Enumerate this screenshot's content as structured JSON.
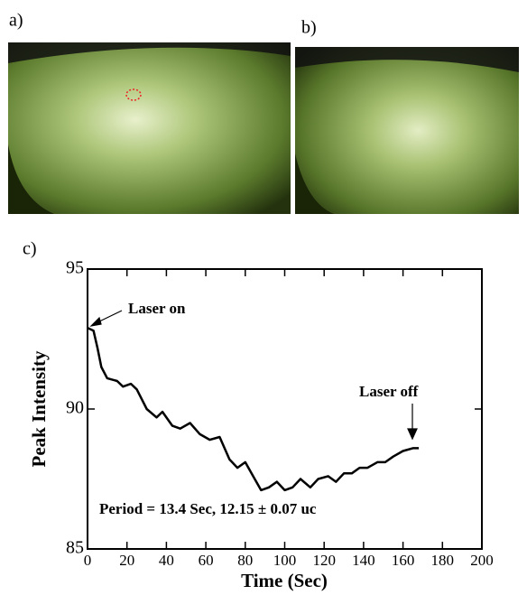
{
  "panel_labels": [
    "a)",
    "b)",
    "c)"
  ],
  "chart_data": {
    "type": "line",
    "x_label": "Time (Sec)",
    "y_label": "Peak Intensity",
    "x": [
      0,
      3,
      5,
      7,
      10,
      15,
      18,
      22,
      25,
      30,
      35,
      38,
      43,
      47,
      52,
      57,
      62,
      67,
      72,
      76,
      80,
      84,
      88,
      92,
      96,
      100,
      104,
      108,
      113,
      117,
      122,
      126,
      130,
      134,
      138,
      142,
      147,
      151,
      155,
      160,
      165,
      168
    ],
    "values": [
      92.9,
      92.8,
      92.2,
      91.5,
      91.1,
      91.0,
      90.8,
      90.9,
      90.7,
      90.0,
      89.7,
      89.9,
      89.4,
      89.3,
      89.5,
      89.1,
      88.9,
      89.0,
      88.2,
      87.9,
      88.1,
      87.6,
      87.1,
      87.2,
      87.4,
      87.1,
      87.2,
      87.5,
      87.2,
      87.5,
      87.6,
      87.4,
      87.7,
      87.7,
      87.9,
      87.9,
      88.1,
      88.1,
      88.3,
      88.5,
      88.6,
      88.6
    ],
    "color": "#000000",
    "xlim": [
      0,
      200
    ],
    "xticks": [
      0,
      20,
      40,
      60,
      80,
      100,
      120,
      140,
      160,
      180,
      200
    ],
    "ylim": [
      85,
      95
    ],
    "yticks": [
      85,
      90,
      95
    ],
    "annotations": [
      "Laser on",
      "Laser off",
      "Period = 13.4 Sec, 12.15 ± 0.07 uc"
    ]
  }
}
